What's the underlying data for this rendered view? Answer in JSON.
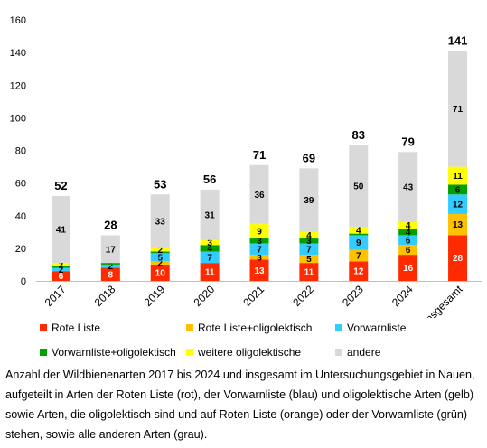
{
  "chart_data": {
    "type": "bar",
    "stacked": true,
    "categories": [
      "2017",
      "2018",
      "2019",
      "2020",
      "2021",
      "2022",
      "2023",
      "2024",
      "insgesamt"
    ],
    "ylim": [
      0,
      160
    ],
    "yticks": [
      0,
      20,
      40,
      60,
      80,
      100,
      120,
      140,
      160
    ],
    "grid": false,
    "legend_position": "bottom",
    "series": [
      {
        "name": "Rote Liste",
        "color": "#ff2a00",
        "values": [
          6,
          8,
          10,
          11,
          13,
          11,
          12,
          16,
          28
        ]
      },
      {
        "name": "Rote Liste+oligolektisch",
        "color": "#ffc000",
        "values": [
          0,
          0,
          2,
          0,
          3,
          5,
          7,
          6,
          13
        ]
      },
      {
        "name": "Vorwarnliste",
        "color": "#33ccff",
        "values": [
          2,
          2,
          5,
          7,
          7,
          7,
          9,
          6,
          12
        ]
      },
      {
        "name": "Vorwarnliste+oligolektisch",
        "color": "#00a000",
        "values": [
          1,
          1,
          1,
          4,
          3,
          3,
          1,
          4,
          6
        ]
      },
      {
        "name": "weitere oligolektische",
        "color": "#ffff00",
        "values": [
          2,
          0,
          2,
          3,
          9,
          4,
          4,
          4,
          11
        ]
      },
      {
        "name": "andere",
        "color": "#d9d9d9",
        "values": [
          41,
          17,
          33,
          31,
          36,
          39,
          50,
          43,
          71
        ]
      }
    ],
    "segment_labels": [
      [
        "6",
        "",
        "2",
        "",
        "2",
        "41"
      ],
      [
        "8",
        "",
        "2",
        "",
        "",
        "17"
      ],
      [
        "10",
        "2",
        "5",
        "",
        "2",
        "33"
      ],
      [
        "11",
        "",
        "7",
        "4",
        "3",
        "31"
      ],
      [
        "13",
        "3",
        "7",
        "3",
        "9",
        "36"
      ],
      [
        "11",
        "5",
        "7",
        "3",
        "4",
        "39"
      ],
      [
        "12",
        "7",
        "9",
        "",
        "4",
        "50"
      ],
      [
        "16",
        "6",
        "6",
        "4",
        "4",
        "43"
      ],
      [
        "28",
        "13",
        "12",
        "6",
        "11",
        "71"
      ]
    ],
    "totals": [
      "52",
      "28",
      "53",
      "56",
      "71",
      "69",
      "83",
      "79",
      "141"
    ]
  },
  "caption_lines": [
    "Anzahl der Wildbienenarten 2017 bis 2024 und insgesamt im Untersuchungsgebiet in Nauen,",
    "aufgeteilt in Arten der Roten Liste (rot), der Vorwarnliste (blau) und oligolektische Arten (gelb)",
    "sowie Arten, die oligolektisch sind und auf Roten Liste (orange) oder der Vorwarnliste (grün)",
    "stehen, sowie alle anderen Arten (grau)."
  ]
}
